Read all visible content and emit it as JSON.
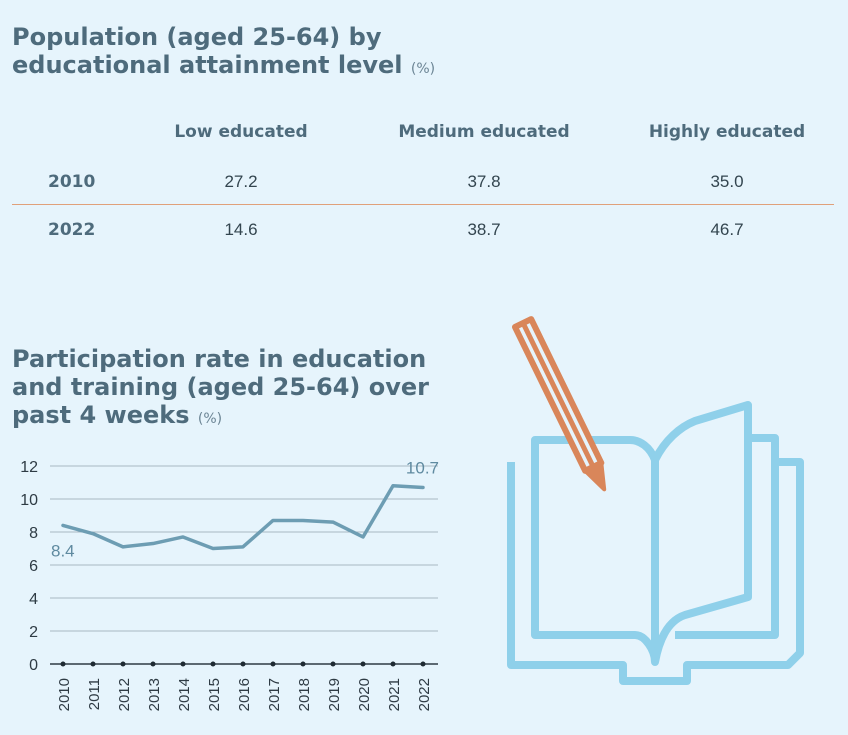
{
  "table": {
    "title": "Population (aged 25-64) by educational attainment level",
    "unit": "(%)",
    "columns": [
      "Low educated",
      "Medium educated",
      "Highly educated"
    ],
    "rows": [
      {
        "year": "2010",
        "values": [
          "27.2",
          "37.8",
          "35.0"
        ]
      },
      {
        "year": "2022",
        "values": [
          "14.6",
          "38.7",
          "46.7"
        ]
      }
    ]
  },
  "chart_data": {
    "type": "line",
    "title": "Participation rate in education and training (aged 25-64) over past 4 weeks",
    "unit": "(%)",
    "x": [
      "2010",
      "2011",
      "2012",
      "2013",
      "2014",
      "2015",
      "2016",
      "2017",
      "2018",
      "2019",
      "2020",
      "2021",
      "2022"
    ],
    "series": [
      {
        "values": [
          8.4,
          7.9,
          7.1,
          7.3,
          7.7,
          7.0,
          7.1,
          8.7,
          8.7,
          8.6,
          7.7,
          10.8,
          10.7
        ]
      }
    ],
    "yticks": [
      0,
      2,
      4,
      6,
      8,
      10,
      12
    ],
    "ylim": [
      0,
      12
    ],
    "annotations": [
      {
        "x": "2010",
        "text": "8.4"
      },
      {
        "x": "2022",
        "text": "10.7"
      }
    ],
    "grid": true,
    "line_color": "#6d9db3"
  },
  "colors": {
    "title": "#4e6b7c",
    "rule": "#e0a07a",
    "book": "#8fd0ea",
    "pencil": "#d9865a"
  },
  "illustration": "open-book-with-pencil-icon"
}
